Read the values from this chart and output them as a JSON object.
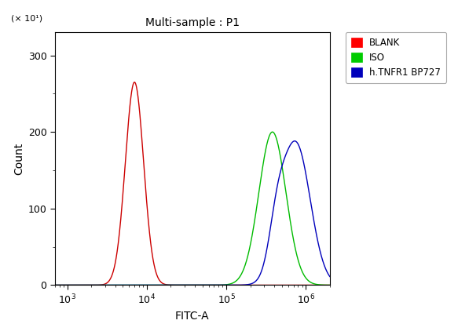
{
  "title": "Multi-sample : P1",
  "xlabel": "FITC-A",
  "ylabel": "Count",
  "ylabel_secondary": "(× 10¹)",
  "xlim_log": [
    700,
    2000000
  ],
  "ylim": [
    0,
    330
  ],
  "yticks": [
    0,
    100,
    200,
    300
  ],
  "xtick_positions": [
    1000,
    10000,
    100000,
    1000000
  ],
  "background_color": "#ffffff",
  "plot_bg_color": "#ffffff",
  "legend_labels": [
    "BLANK",
    "ISO",
    "h.TNFR1 BP727"
  ],
  "legend_colors": [
    "#ff0000",
    "#00cc00",
    "#0000bb"
  ],
  "curves": {
    "red": {
      "peak": 7000,
      "peak_height": 265,
      "sigma_log": 0.115,
      "color": "#cc0000"
    },
    "green": {
      "peak": 380000,
      "peak_height": 200,
      "sigma_log": 0.17,
      "color": "#00bb00"
    },
    "blue": {
      "peak": 750000,
      "peak_height": 185,
      "sigma_log": 0.18,
      "color": "#0000bb"
    },
    "blue_shoulder": {
      "peak": 430000,
      "peak_height": 50,
      "sigma_log": 0.1
    }
  }
}
